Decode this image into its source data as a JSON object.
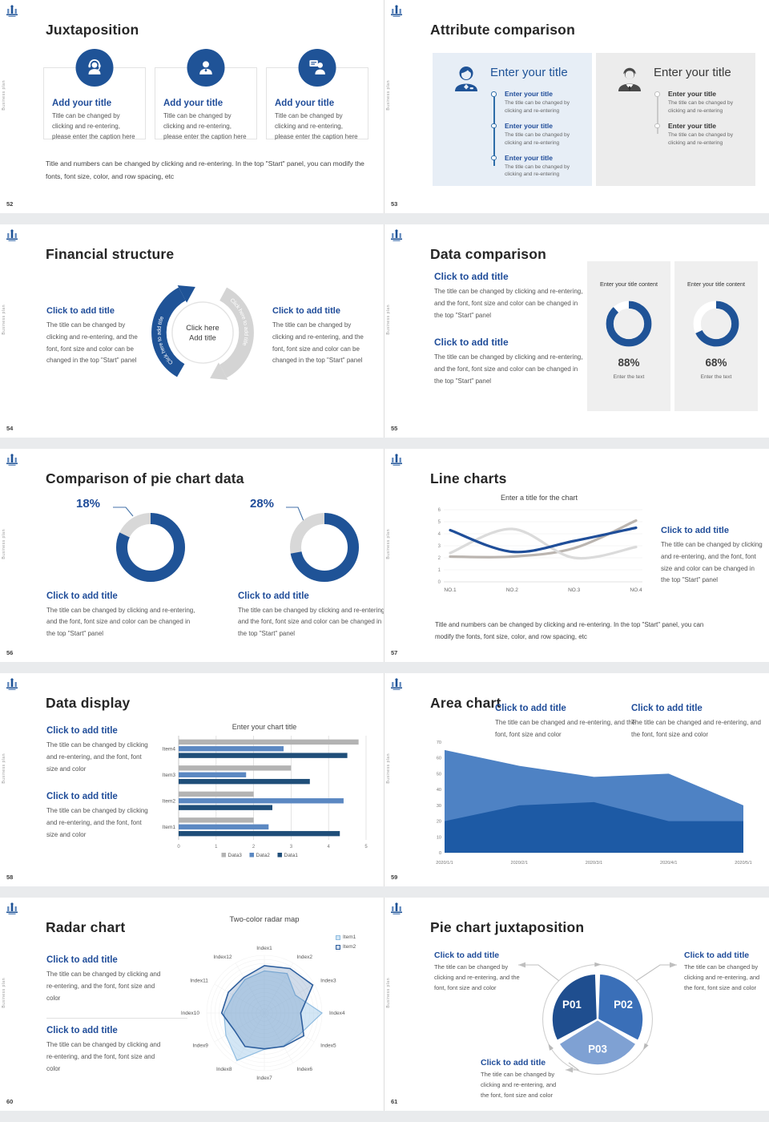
{
  "common": {
    "brand_vertical_label": "Business plan"
  },
  "slides": {
    "s52": {
      "number": "52",
      "title": "Juxtaposition",
      "cards": [
        {
          "icon": "support-agent-icon",
          "title": "Add your title",
          "caption": "Title can be changed by clicking and re-entering, please enter the caption here"
        },
        {
          "icon": "person-icon",
          "title": "Add your title",
          "caption": "Title can be changed by clicking and re-entering, please enter the caption here"
        },
        {
          "icon": "presenter-icon",
          "title": "Add your title",
          "caption": "Title can be changed by clicking and re-entering, please enter the caption here"
        }
      ],
      "note": "Title and numbers can be changed by clicking and re-entering. In the top \"Start\" panel, you can modify the fonts, font size, color, and row spacing, etc"
    },
    "s53": {
      "number": "53",
      "title": "Attribute comparison",
      "left_panel": {
        "heading": "Enter your title",
        "items": [
          {
            "title": "Enter your title",
            "caption": "The title can be changed by clicking and re-entering"
          },
          {
            "title": "Enter your title",
            "caption": "The title can be changed by clicking and re-entering"
          },
          {
            "title": "Enter your title",
            "caption": "The title can be changed by clicking and re-entering"
          }
        ]
      },
      "right_panel": {
        "heading": "Enter your title",
        "items": [
          {
            "title": "Enter your title",
            "caption": "The title can be changed by clicking and re-entering"
          },
          {
            "title": "Enter your title",
            "caption": "The title can be changed by clicking and re-entering"
          }
        ]
      }
    },
    "s54": {
      "number": "54",
      "title": "Financial structure",
      "arc_left_text": "Click here to add title",
      "arc_right_text": "Click here to add title",
      "center_top": "Click here",
      "center_bottom": "Add title",
      "left_block": {
        "heading": "Click to add title",
        "caption": "The title can be changed by clicking and re-entering, and the font, font size and color can be changed in the top \"Start\" panel"
      },
      "right_block": {
        "heading": "Click to add title",
        "caption": "The title can be changed by clicking and re-entering, and the font, font size and color can be changed in the top \"Start\" panel"
      }
    },
    "s55": {
      "number": "55",
      "title": "Data comparison",
      "blocks": [
        {
          "heading": "Click to add title",
          "caption": "The title can be changed by clicking and re-entering, and the font, font size and color can be changed in the top \"Start\" panel"
        },
        {
          "heading": "Click to add title",
          "caption": "The title can be changed by clicking and re-entering, and the font, font size and color can be changed in the top \"Start\" panel"
        }
      ]
    },
    "s56": {
      "number": "56",
      "title": "Comparison of pie chart data",
      "blocks": [
        {
          "heading": "Click to add title",
          "caption": "The title can be changed by clicking and re-entering, and the font, font size and color can be changed in the top \"Start\" panel"
        },
        {
          "heading": "Click to add title",
          "caption": "The title can be changed by clicking and re-entering, and the font, font size and color can be changed in the top \"Start\" panel"
        }
      ]
    },
    "s57": {
      "number": "57",
      "title": "Line charts",
      "side_block": {
        "heading": "Click to add title",
        "caption": "The title can be changed by clicking and re-entering, and the font, font size and color can be changed in the top \"Start\" panel"
      },
      "note": "Title and numbers can be changed by clicking and re-entering. In the top \"Start\" panel, you can modify the fonts, font size, color, and row spacing, etc"
    },
    "s58": {
      "number": "58",
      "title": "Data display",
      "blocks": [
        {
          "heading": "Click to add title",
          "caption": "The title can be changed by clicking and re-entering, and the font, font size and color"
        },
        {
          "heading": "Click to add title",
          "caption": "The title can be changed by clicking and re-entering, and the font, font size and color"
        }
      ]
    },
    "s59": {
      "number": "59",
      "title": "Area chart",
      "blocks": [
        {
          "heading": "Click to add title",
          "caption": "The title can be changed and re-entering, and the font, font size and color"
        },
        {
          "heading": "Click to add title",
          "caption": "The title can be changed and re-entering, and the font, font size and color"
        }
      ]
    },
    "s60": {
      "number": "60",
      "title": "Radar chart",
      "blocks": [
        {
          "heading": "Click to add title",
          "caption": "The title can be changed by clicking and re-entering, and the font, font size and color"
        },
        {
          "heading": "Click to add title",
          "caption": "The title can be changed by clicking and re-entering, and the font, font size and color"
        }
      ]
    },
    "s61": {
      "number": "61",
      "title": "Pie chart juxtaposition",
      "callouts": [
        {
          "heading": "Click to add title",
          "caption": "The title can be changed by clicking and re-entering, and the font, font size and color"
        },
        {
          "heading": "Click to add title",
          "caption": "The title can be changed by clicking and re-entering, and the font, font size and color"
        },
        {
          "heading": "Click to add title",
          "caption": "The title can be changed by clicking and re-entering, and the font, font size and color"
        }
      ]
    }
  },
  "chart_data": [
    {
      "id": "donut-88",
      "slide": "55",
      "type": "donut",
      "title": "Enter your title content",
      "label": "88%",
      "value": 88,
      "arc_pct": 88,
      "arc_color": "#1F5397",
      "track_color": "#FFFFFF",
      "footer": "Enter the text"
    },
    {
      "id": "donut-68",
      "slide": "55",
      "type": "donut",
      "title": "Enter your title content",
      "label": "68%",
      "value": 68,
      "arc_pct": 68,
      "arc_color": "#1F5397",
      "track_color": "#FFFFFF",
      "footer": "Enter the text"
    },
    {
      "id": "donut-18",
      "slide": "56",
      "type": "donut",
      "label": "18%",
      "value": 18,
      "arc_pct": 82,
      "arc_color": "#1F5397",
      "track_color": "#D8D8D8"
    },
    {
      "id": "donut-28",
      "slide": "56",
      "type": "donut",
      "label": "28%",
      "value": 28,
      "arc_pct": 72,
      "arc_color": "#1F5397",
      "track_color": "#D8D8D8"
    },
    {
      "id": "line-chart",
      "slide": "57",
      "type": "line",
      "title": "Enter a title for the chart",
      "categories": [
        "NO.1",
        "NO.2",
        "NO.3",
        "NO.4"
      ],
      "ylim": [
        0,
        6
      ],
      "yticks": [
        0,
        1,
        2,
        3,
        4,
        5,
        6
      ],
      "grid": true,
      "series": [
        {
          "name": "warm-gray-series",
          "color": "#BBB5B0",
          "values": [
            2.1,
            2.1,
            2.8,
            5.1
          ]
        },
        {
          "name": "light-gray-series",
          "color": "#DBDBDB",
          "values": [
            2.4,
            4.4,
            2.0,
            2.9
          ]
        },
        {
          "name": "blue-series",
          "color": "#1F4E99",
          "values": [
            4.3,
            2.5,
            3.4,
            4.5
          ]
        }
      ]
    },
    {
      "id": "bar-chart",
      "slide": "58",
      "type": "bar",
      "orientation": "horizontal",
      "title": "Enter your chart title",
      "categories": [
        "Item1",
        "Item2",
        "Item3",
        "Item4"
      ],
      "xlim": [
        0,
        5
      ],
      "xticks": [
        0,
        1,
        2,
        3,
        4,
        5
      ],
      "series": [
        {
          "name": "Data1",
          "color": "#1F4E79",
          "values": [
            4.3,
            2.5,
            3.5,
            4.5
          ]
        },
        {
          "name": "Data2",
          "color": "#5B88C2",
          "values": [
            2.4,
            4.4,
            1.8,
            2.8
          ]
        },
        {
          "name": "Data3",
          "color": "#B3B3B3",
          "values": [
            2.0,
            2.0,
            3.0,
            4.8
          ]
        }
      ],
      "row_order": [
        "Data3",
        "Data2",
        "Data1"
      ],
      "legend_order": [
        "Data3",
        "Data2",
        "Data1"
      ],
      "legend_position": "bottom"
    },
    {
      "id": "area-chart",
      "slide": "59",
      "type": "area",
      "categories": [
        "2020/1/1",
        "2020/2/1",
        "2020/3/1",
        "2020/4/1",
        "2020/5/1"
      ],
      "ylim": [
        0,
        70
      ],
      "yticks": [
        0,
        10,
        20,
        30,
        40,
        50,
        60,
        70
      ],
      "series": [
        {
          "name": "upper-area",
          "color": "#4E82C4",
          "values": [
            65,
            55,
            48,
            50,
            30
          ]
        },
        {
          "name": "lower-area",
          "color": "#1D5AA5",
          "values": [
            20,
            30,
            32,
            20,
            20
          ]
        }
      ]
    },
    {
      "id": "radar-chart",
      "slide": "60",
      "type": "radar",
      "title": "Two-color radar map",
      "rmax": 10,
      "axes": [
        "Index1",
        "Index2",
        "Index3",
        "Index4",
        "Index5",
        "Index6",
        "Index7",
        "Index8",
        "Index9",
        "Index10",
        "Index11",
        "Index12"
      ],
      "series": [
        {
          "name": "Item1",
          "color": "#8FBCE0",
          "fill": "rgba(157,199,232,0.45)",
          "values": [
            7.3,
            7.9,
            6.2,
            10,
            7.2,
            6.6,
            6.3,
            9.5,
            7.7,
            7.0,
            6.2,
            6.7
          ]
        },
        {
          "name": "Item2",
          "color": "#2E5F9E",
          "fill": "rgba(46,95,158,0.22)",
          "values": [
            8.2,
            8.9,
            9.7,
            6.3,
            7.9,
            6.7,
            6.2,
            6.7,
            6.0,
            7.4,
            7.2,
            7.1
          ]
        }
      ],
      "legend_position": "top-right"
    },
    {
      "id": "pie-juxtaposition",
      "slide": "61",
      "type": "pie",
      "labels": [
        "P01",
        "P02",
        "P03"
      ],
      "values": [
        33.3,
        33.3,
        33.3
      ],
      "colors": [
        "#1F4E8F",
        "#3A6FB8",
        "#7FA1D3"
      ]
    }
  ]
}
